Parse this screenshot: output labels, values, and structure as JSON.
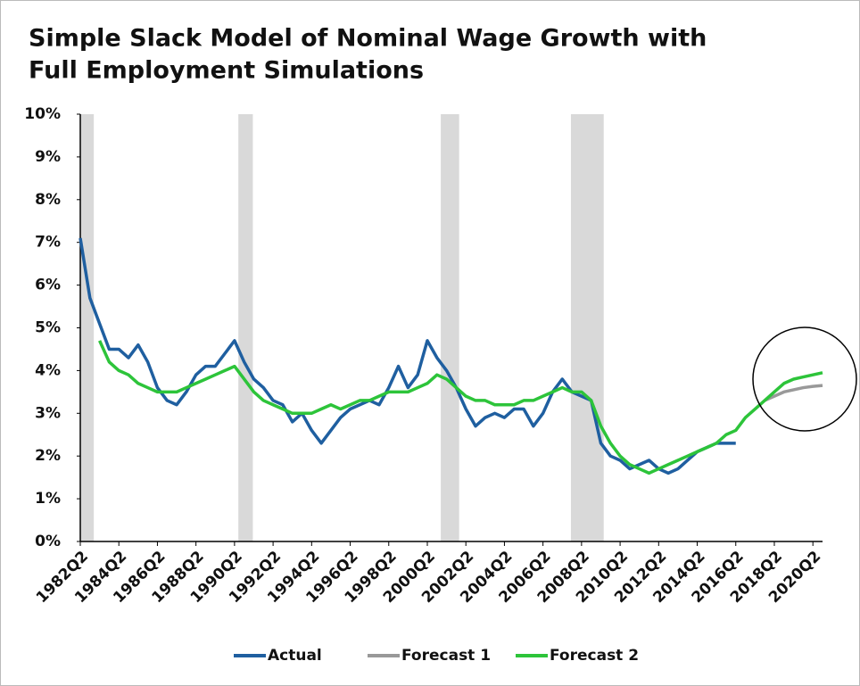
{
  "chart_data": {
    "type": "line",
    "title": [
      "Simple Slack Model of Nominal Wage Growth with",
      "Full Employment Simulations"
    ],
    "x": [
      1982.25,
      1982.75,
      1983.25,
      1983.75,
      1984.25,
      1984.75,
      1985.25,
      1985.75,
      1986.25,
      1986.75,
      1987.25,
      1987.75,
      1988.25,
      1988.75,
      1989.25,
      1989.75,
      1990.25,
      1990.75,
      1991.25,
      1991.75,
      1992.25,
      1992.75,
      1993.25,
      1993.75,
      1994.25,
      1994.75,
      1995.25,
      1995.75,
      1996.25,
      1996.75,
      1997.25,
      1997.75,
      1998.25,
      1998.75,
      1999.25,
      1999.75,
      2000.25,
      2000.75,
      2001.25,
      2001.75,
      2002.25,
      2002.75,
      2003.25,
      2003.75,
      2004.25,
      2004.75,
      2005.25,
      2005.75,
      2006.25,
      2006.75,
      2007.25,
      2007.75,
      2008.25,
      2008.75,
      2009.25,
      2009.75,
      2010.25,
      2010.75,
      2011.25,
      2011.75,
      2012.25,
      2012.75,
      2013.25,
      2013.75,
      2014.25,
      2014.75,
      2015.25,
      2015.75,
      2016.25,
      2016.75,
      2017.25,
      2017.75,
      2018.25,
      2018.75,
      2019.25,
      2019.75,
      2020.25,
      2020.75
    ],
    "series": [
      {
        "name": "Actual",
        "color": "#1f5fa0",
        "values": [
          7.1,
          5.7,
          5.1,
          4.5,
          4.5,
          4.3,
          4.6,
          4.2,
          3.6,
          3.3,
          3.2,
          3.5,
          3.9,
          4.1,
          4.1,
          4.4,
          4.7,
          4.2,
          3.8,
          3.6,
          3.3,
          3.2,
          2.8,
          3.0,
          2.6,
          2.3,
          2.6,
          2.9,
          3.1,
          3.2,
          3.3,
          3.2,
          3.6,
          4.1,
          3.6,
          3.9,
          4.7,
          4.3,
          4.0,
          3.6,
          3.1,
          2.7,
          2.9,
          3.0,
          2.9,
          3.1,
          3.1,
          2.7,
          3.0,
          3.5,
          3.8,
          3.5,
          3.4,
          3.3,
          2.3,
          2.0,
          1.9,
          1.7,
          1.8,
          1.9,
          1.7,
          1.6,
          1.7,
          1.9,
          2.1,
          2.2,
          2.3,
          2.3,
          2.3,
          null,
          null,
          null,
          null,
          null,
          null,
          null,
          null,
          null
        ]
      },
      {
        "name": "Forecast 1",
        "color": "#999999",
        "values": [
          null,
          null,
          null,
          null,
          null,
          null,
          null,
          null,
          null,
          null,
          null,
          null,
          null,
          null,
          null,
          null,
          null,
          null,
          null,
          null,
          null,
          null,
          null,
          null,
          null,
          null,
          null,
          null,
          null,
          null,
          null,
          null,
          null,
          null,
          null,
          null,
          null,
          null,
          null,
          null,
          null,
          null,
          null,
          null,
          null,
          null,
          null,
          null,
          null,
          null,
          null,
          null,
          null,
          null,
          null,
          null,
          null,
          null,
          null,
          null,
          null,
          null,
          null,
          null,
          null,
          null,
          null,
          null,
          null,
          null,
          null,
          3.3,
          3.4,
          3.5,
          3.55,
          3.6,
          3.63,
          3.65
        ]
      },
      {
        "name": "Forecast 2",
        "color": "#2dc43a",
        "values": [
          null,
          null,
          4.7,
          4.2,
          4.0,
          3.9,
          3.7,
          3.6,
          3.5,
          3.5,
          3.5,
          3.6,
          3.7,
          3.8,
          3.9,
          4.0,
          4.1,
          3.8,
          3.5,
          3.3,
          3.2,
          3.1,
          3.0,
          3.0,
          3.0,
          3.1,
          3.2,
          3.1,
          3.2,
          3.3,
          3.3,
          3.4,
          3.5,
          3.5,
          3.5,
          3.6,
          3.7,
          3.9,
          3.8,
          3.6,
          3.4,
          3.3,
          3.3,
          3.2,
          3.2,
          3.2,
          3.3,
          3.3,
          3.4,
          3.5,
          3.6,
          3.5,
          3.5,
          3.3,
          2.7,
          2.3,
          2.0,
          1.8,
          1.7,
          1.6,
          1.7,
          1.8,
          1.9,
          2.0,
          2.1,
          2.2,
          2.3,
          2.5,
          2.6,
          2.9,
          3.1,
          3.3,
          3.5,
          3.7,
          3.8,
          3.85,
          3.9,
          3.95
        ]
      }
    ],
    "shaded_periods": [
      [
        1982.25,
        1982.95
      ],
      [
        1990.45,
        1991.2
      ],
      [
        2000.95,
        2001.9
      ],
      [
        2007.7,
        2009.4
      ]
    ],
    "xlim": [
      1982.25,
      2020.75
    ],
    "xticks": [
      {
        "value": 1982.25,
        "label": "1982Q2"
      },
      {
        "value": 1984.25,
        "label": "1984Q2"
      },
      {
        "value": 1986.25,
        "label": "1986Q2"
      },
      {
        "value": 1988.25,
        "label": "1988Q2"
      },
      {
        "value": 1990.25,
        "label": "1990Q2"
      },
      {
        "value": 1992.25,
        "label": "1992Q2"
      },
      {
        "value": 1994.25,
        "label": "1994Q2"
      },
      {
        "value": 1996.25,
        "label": "1996Q2"
      },
      {
        "value": 1998.25,
        "label": "1998Q2"
      },
      {
        "value": 2000.25,
        "label": "2000Q2"
      },
      {
        "value": 2002.25,
        "label": "2002Q2"
      },
      {
        "value": 2004.25,
        "label": "2004Q2"
      },
      {
        "value": 2006.25,
        "label": "2006Q2"
      },
      {
        "value": 2008.25,
        "label": "2008Q2"
      },
      {
        "value": 2010.25,
        "label": "2010Q2"
      },
      {
        "value": 2012.25,
        "label": "2012Q2"
      },
      {
        "value": 2014.25,
        "label": "2014Q2"
      },
      {
        "value": 2016.25,
        "label": "2016Q2"
      },
      {
        "value": 2018.25,
        "label": "2018Q2"
      },
      {
        "value": 2020.25,
        "label": "2020Q2"
      }
    ],
    "ylim": [
      0,
      10
    ],
    "yticks": [
      {
        "value": 0,
        "label": "0%"
      },
      {
        "value": 1,
        "label": "1%"
      },
      {
        "value": 2,
        "label": "2%"
      },
      {
        "value": 3,
        "label": "3%"
      },
      {
        "value": 4,
        "label": "4%"
      },
      {
        "value": 5,
        "label": "5%"
      },
      {
        "value": 6,
        "label": "6%"
      },
      {
        "value": 7,
        "label": "7%"
      },
      {
        "value": 8,
        "label": "8%"
      },
      {
        "value": 9,
        "label": "9%"
      },
      {
        "value": 10,
        "label": "10%"
      }
    ],
    "grid": false,
    "legend": "bottom"
  }
}
